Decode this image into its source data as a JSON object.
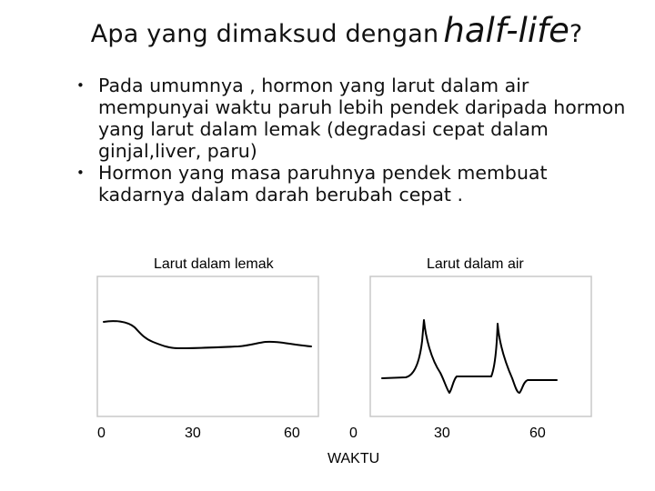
{
  "title": {
    "main": "Apa yang dimaksud dengan",
    "emphasis": "half-life",
    "end": "?"
  },
  "bullets": [
    {
      "marker": "•",
      "text": "Pada umumnya , hormon yang larut dalam air mempunyai waktu paruh lebih pendek daripada hormon yang larut dalam lemak (degradasi cepat dalam ginjal,liver, paru)"
    },
    {
      "marker": "•",
      "text": "Hormon yang masa paruhnya pendek membuat kadarnya dalam darah berubah cepat ."
    }
  ],
  "figures": {
    "left": {
      "label": "Larut dalam lemak",
      "ticks": [
        "0",
        "30",
        "60"
      ]
    },
    "right": {
      "label": "Larut dalam air",
      "ticks": [
        "0",
        "30",
        "60"
      ]
    },
    "x_caption": "WAKTU"
  }
}
